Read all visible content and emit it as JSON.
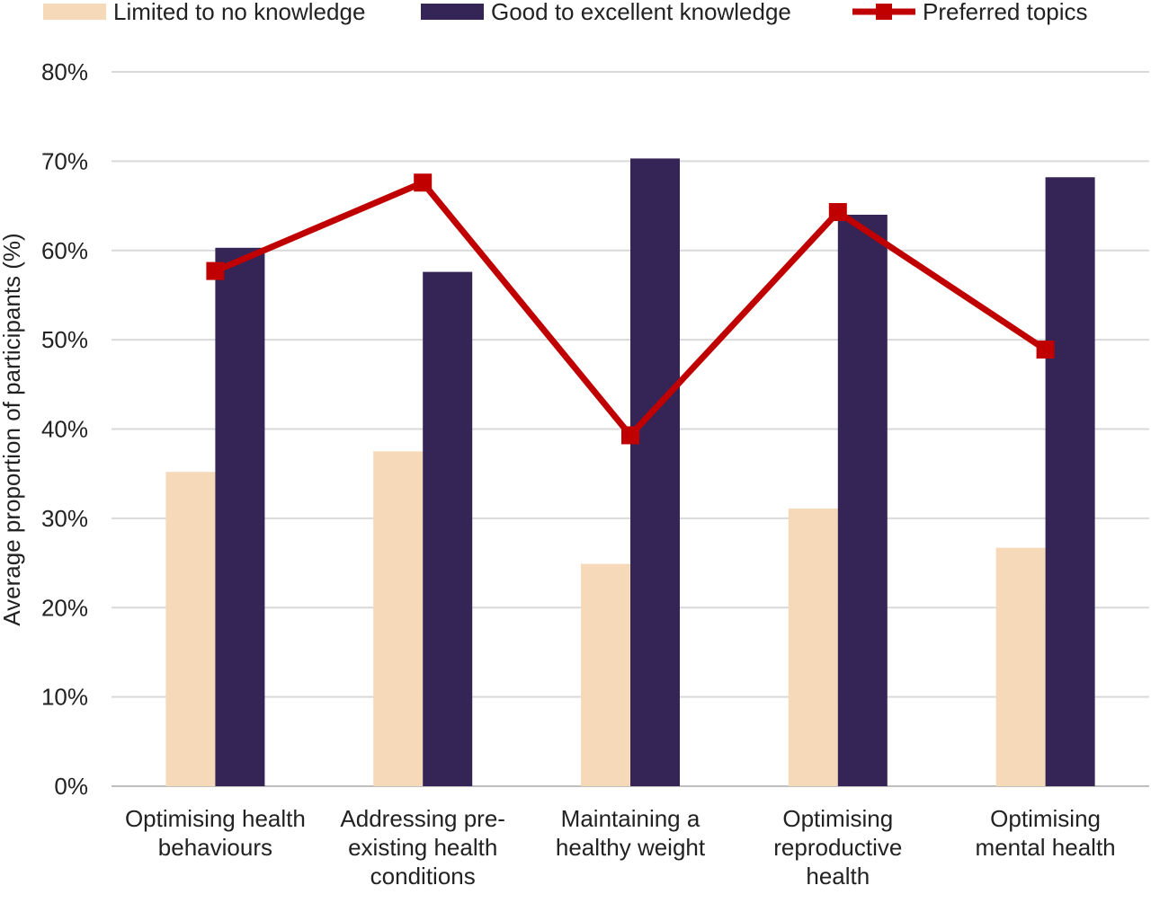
{
  "chart_data": {
    "type": "bar",
    "categories": [
      [
        "Optimising health",
        "behaviours"
      ],
      [
        "Addressing pre-",
        "existing health",
        "conditions"
      ],
      [
        "Maintaining a",
        "healthy weight"
      ],
      [
        "Optimising",
        "reproductive",
        "health"
      ],
      [
        "Optimising",
        "mental health"
      ]
    ],
    "series": [
      {
        "name": "Limited to no knowledge",
        "kind": "bar",
        "color": "#f5d9b8",
        "values": [
          35.2,
          37.5,
          24.9,
          31.1,
          26.7
        ]
      },
      {
        "name": "Good to excellent knowledge",
        "kind": "bar",
        "color": "#352456",
        "values": [
          60.3,
          57.6,
          70.3,
          64.0,
          68.2
        ]
      },
      {
        "name": "Preferred topics",
        "kind": "line",
        "color": "#c00000",
        "values": [
          57.7,
          67.6,
          39.3,
          64.3,
          48.9
        ]
      }
    ],
    "ylabel": "Average proportion of participants (%)",
    "xlabel": "",
    "ylim": [
      0,
      80
    ],
    "yticks": [
      "0%",
      "10%",
      "20%",
      "30%",
      "40%",
      "50%",
      "60%",
      "70%",
      "80%"
    ],
    "grid": true,
    "legend": "top"
  }
}
